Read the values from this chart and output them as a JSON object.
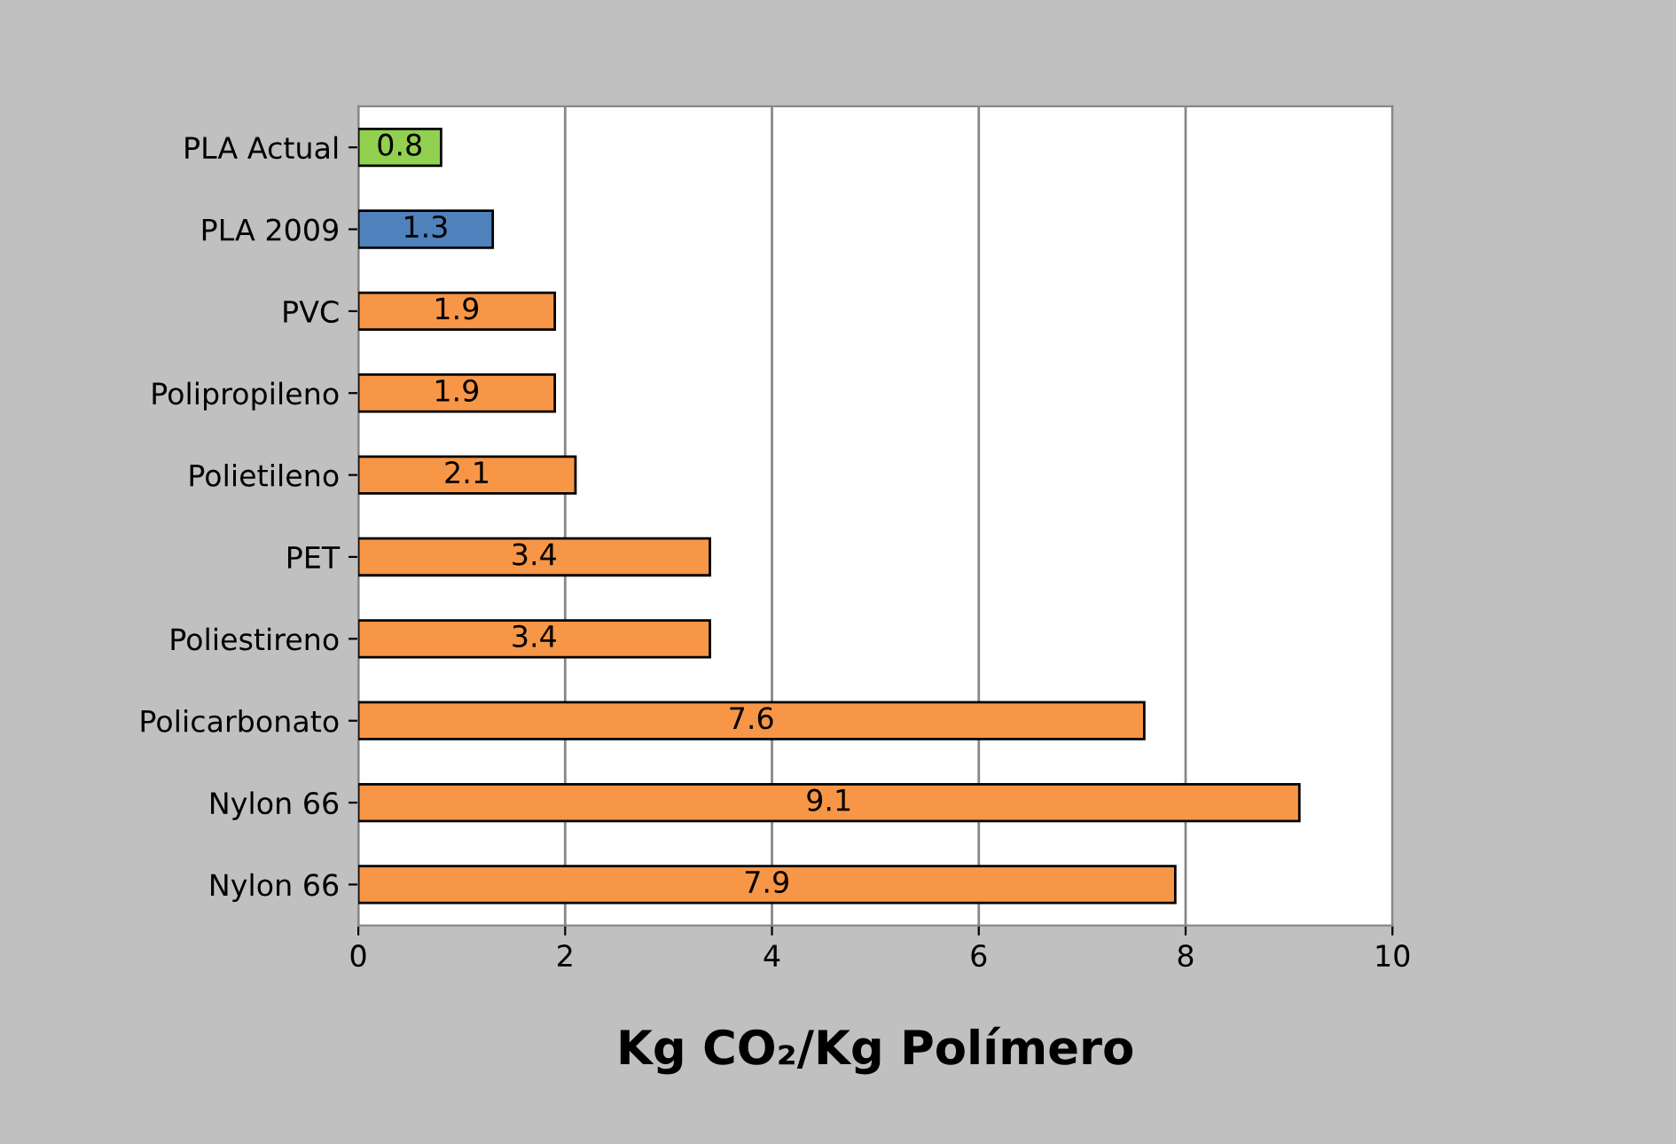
{
  "chart_data": {
    "type": "bar",
    "orientation": "horizontal",
    "xlabel": "Kg CO₂/Kg Polímero",
    "categories": [
      "PLA Actual",
      "PLA 2009",
      "PVC",
      "Polipropileno",
      "Polietileno",
      "PET",
      "Poliestireno",
      "Policarbonato",
      "Nylon 66",
      "Nylon 66"
    ],
    "values": [
      0.8,
      1.3,
      1.9,
      1.9,
      2.1,
      3.4,
      3.4,
      7.6,
      9.1,
      7.9
    ],
    "colors": [
      "#92d050",
      "#4f81bd",
      "#f79646",
      "#f79646",
      "#f79646",
      "#f79646",
      "#f79646",
      "#f79646",
      "#f79646",
      "#f79646"
    ],
    "xlim": [
      0,
      10
    ],
    "xticks": [
      0,
      2,
      4,
      6,
      8,
      10
    ],
    "grid": "x",
    "data_labels": true
  }
}
